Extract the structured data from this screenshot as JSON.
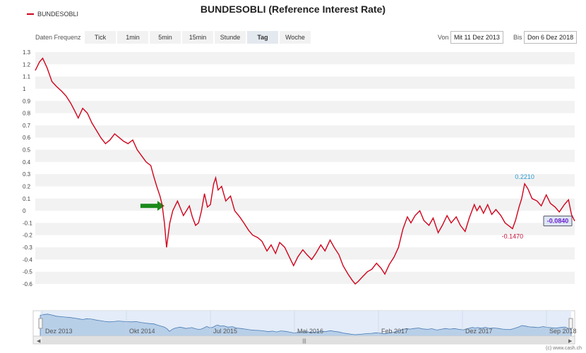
{
  "title": "BUNDESOBLI (Reference Interest Rate)",
  "legend": {
    "label": "BUNDESOBLI",
    "color": "#d0021b"
  },
  "frequency": {
    "label": "Daten Frequenz",
    "buttons": [
      "Tick",
      "1min",
      "5min",
      "15min",
      "Stunde",
      "Tag",
      "Woche"
    ],
    "active": "Tag"
  },
  "range": {
    "from_label": "Von",
    "from_value": "Mit 11 Dez 2013",
    "to_label": "Bis",
    "to_value": "Don 6 Dez 2018"
  },
  "credit": "(c) www.cash.ch",
  "colors": {
    "line": "#d0021b",
    "navigator_fill": "#b8cfe8",
    "navigator_line": "#4a7ab3",
    "max_label": "#2b9bd1",
    "min_label": "#c0143c",
    "last_label": "#6a1fd1",
    "arrow": "#1a8a1a"
  },
  "chart_data": {
    "type": "line",
    "x_range": [
      "2013-12-11",
      "2018-12-06"
    ],
    "ylim": [
      -0.6,
      1.3
    ],
    "y_ticks": [
      1.3,
      1.2,
      1.1,
      1,
      0.9,
      0.8,
      0.7,
      0.6,
      0.5,
      0.4,
      0.3,
      0.2,
      0.1,
      0,
      -0.1,
      -0.2,
      -0.3,
      -0.4,
      -0.5,
      -0.6
    ],
    "navigator_labels": [
      "Dez 2013",
      "Okt 2014",
      "Jul 2015",
      "Mai 2016",
      "Feb 2017",
      "Dez 2017",
      "Sep 2018"
    ],
    "grid": "alternating horizontal bands",
    "series": [
      {
        "name": "BUNDESOBLI",
        "points": [
          [
            "2013-12-11",
            1.15
          ],
          [
            "2013-12-25",
            1.22
          ],
          [
            "2014-01-05",
            1.25
          ],
          [
            "2014-01-20",
            1.17
          ],
          [
            "2014-02-05",
            1.06
          ],
          [
            "2014-02-20",
            1.02
          ],
          [
            "2014-03-10",
            0.98
          ],
          [
            "2014-03-25",
            0.94
          ],
          [
            "2014-04-10",
            0.88
          ],
          [
            "2014-04-25",
            0.81
          ],
          [
            "2014-05-05",
            0.76
          ],
          [
            "2014-05-20",
            0.84
          ],
          [
            "2014-06-05",
            0.8
          ],
          [
            "2014-06-20",
            0.72
          ],
          [
            "2014-07-05",
            0.66
          ],
          [
            "2014-07-20",
            0.6
          ],
          [
            "2014-08-05",
            0.55
          ],
          [
            "2014-08-20",
            0.58
          ],
          [
            "2014-09-05",
            0.63
          ],
          [
            "2014-09-20",
            0.6
          ],
          [
            "2014-10-05",
            0.57
          ],
          [
            "2014-10-20",
            0.55
          ],
          [
            "2014-11-05",
            0.58
          ],
          [
            "2014-11-20",
            0.5
          ],
          [
            "2014-12-05",
            0.45
          ],
          [
            "2014-12-20",
            0.4
          ],
          [
            "2015-01-05",
            0.37
          ],
          [
            "2015-01-15",
            0.28
          ],
          [
            "2015-01-25",
            0.2
          ],
          [
            "2015-02-05",
            0.12
          ],
          [
            "2015-02-12",
            0.05
          ],
          [
            "2015-02-20",
            -0.1
          ],
          [
            "2015-02-27",
            -0.3
          ],
          [
            "2015-03-10",
            -0.1
          ],
          [
            "2015-03-20",
            0.0
          ],
          [
            "2015-04-05",
            0.08
          ],
          [
            "2015-04-15",
            0.02
          ],
          [
            "2015-04-25",
            -0.04
          ],
          [
            "2015-05-05",
            0.0
          ],
          [
            "2015-05-15",
            0.04
          ],
          [
            "2015-05-25",
            -0.05
          ],
          [
            "2015-06-05",
            -0.12
          ],
          [
            "2015-06-15",
            -0.1
          ],
          [
            "2015-06-25",
            0.0
          ],
          [
            "2015-07-05",
            0.14
          ],
          [
            "2015-07-15",
            0.03
          ],
          [
            "2015-07-25",
            0.05
          ],
          [
            "2015-08-05",
            0.22
          ],
          [
            "2015-08-12",
            0.27
          ],
          [
            "2015-08-20",
            0.17
          ],
          [
            "2015-09-01",
            0.2
          ],
          [
            "2015-09-15",
            0.08
          ],
          [
            "2015-10-01",
            0.12
          ],
          [
            "2015-10-15",
            0.0
          ],
          [
            "2015-11-01",
            -0.05
          ],
          [
            "2015-11-15",
            -0.1
          ],
          [
            "2015-12-01",
            -0.16
          ],
          [
            "2015-12-15",
            -0.2
          ],
          [
            "2016-01-01",
            -0.22
          ],
          [
            "2016-01-15",
            -0.25
          ],
          [
            "2016-02-01",
            -0.33
          ],
          [
            "2016-02-15",
            -0.28
          ],
          [
            "2016-03-01",
            -0.35
          ],
          [
            "2016-03-15",
            -0.26
          ],
          [
            "2016-04-01",
            -0.3
          ],
          [
            "2016-04-15",
            -0.37
          ],
          [
            "2016-05-01",
            -0.45
          ],
          [
            "2016-05-15",
            -0.38
          ],
          [
            "2016-06-01",
            -0.32
          ],
          [
            "2016-06-15",
            -0.36
          ],
          [
            "2016-07-01",
            -0.4
          ],
          [
            "2016-07-15",
            -0.35
          ],
          [
            "2016-08-01",
            -0.28
          ],
          [
            "2016-08-15",
            -0.33
          ],
          [
            "2016-09-01",
            -0.24
          ],
          [
            "2016-09-15",
            -0.3
          ],
          [
            "2016-10-01",
            -0.36
          ],
          [
            "2016-10-15",
            -0.45
          ],
          [
            "2016-11-01",
            -0.52
          ],
          [
            "2016-11-15",
            -0.57
          ],
          [
            "2016-11-25",
            -0.6
          ],
          [
            "2016-12-05",
            -0.58
          ],
          [
            "2016-12-20",
            -0.54
          ],
          [
            "2017-01-05",
            -0.5
          ],
          [
            "2017-01-20",
            -0.48
          ],
          [
            "2017-02-05",
            -0.43
          ],
          [
            "2017-02-20",
            -0.47
          ],
          [
            "2017-03-05",
            -0.52
          ],
          [
            "2017-03-20",
            -0.44
          ],
          [
            "2017-04-05",
            -0.38
          ],
          [
            "2017-04-20",
            -0.3
          ],
          [
            "2017-05-05",
            -0.15
          ],
          [
            "2017-05-20",
            -0.05
          ],
          [
            "2017-06-01",
            -0.1
          ],
          [
            "2017-06-15",
            -0.04
          ],
          [
            "2017-07-01",
            0.0
          ],
          [
            "2017-07-15",
            -0.08
          ],
          [
            "2017-08-01",
            -0.12
          ],
          [
            "2017-08-15",
            -0.06
          ],
          [
            "2017-09-01",
            -0.18
          ],
          [
            "2017-09-15",
            -0.12
          ],
          [
            "2017-10-01",
            -0.04
          ],
          [
            "2017-10-15",
            -0.1
          ],
          [
            "2017-11-01",
            -0.05
          ],
          [
            "2017-11-15",
            -0.12
          ],
          [
            "2017-12-01",
            -0.17
          ],
          [
            "2017-12-15",
            -0.06
          ],
          [
            "2018-01-01",
            0.05
          ],
          [
            "2018-01-10",
            0.0
          ],
          [
            "2018-01-20",
            0.04
          ],
          [
            "2018-02-01",
            -0.02
          ],
          [
            "2018-02-15",
            0.05
          ],
          [
            "2018-03-01",
            -0.03
          ],
          [
            "2018-03-15",
            0.01
          ],
          [
            "2018-04-01",
            -0.04
          ],
          [
            "2018-04-15",
            -0.1
          ],
          [
            "2018-05-01",
            -0.13
          ],
          [
            "2018-05-10",
            -0.147
          ],
          [
            "2018-05-20",
            -0.08
          ],
          [
            "2018-06-01",
            0.03
          ],
          [
            "2018-06-10",
            0.1
          ],
          [
            "2018-06-20",
            0.221
          ],
          [
            "2018-07-01",
            0.18
          ],
          [
            "2018-07-15",
            0.1
          ],
          [
            "2018-08-01",
            0.08
          ],
          [
            "2018-08-15",
            0.04
          ],
          [
            "2018-09-01",
            0.13
          ],
          [
            "2018-09-15",
            0.06
          ],
          [
            "2018-10-01",
            0.03
          ],
          [
            "2018-10-15",
            -0.01
          ],
          [
            "2018-11-01",
            0.05
          ],
          [
            "2018-11-15",
            0.09
          ],
          [
            "2018-11-25",
            -0.03
          ],
          [
            "2018-12-06",
            -0.084
          ]
        ]
      }
    ],
    "annotations": [
      {
        "text": "0.2210",
        "x": "2018-06-20",
        "y": 0.221,
        "kind": "max"
      },
      {
        "text": "-0.1470",
        "x": "2018-05-10",
        "y": -0.147,
        "kind": "min"
      },
      {
        "text": "-0.0840",
        "x": "2018-12-06",
        "y": -0.084,
        "kind": "last"
      }
    ],
    "marker": {
      "type": "arrow",
      "direction": "right",
      "x": "2015-02-20",
      "y": 0.04
    }
  }
}
